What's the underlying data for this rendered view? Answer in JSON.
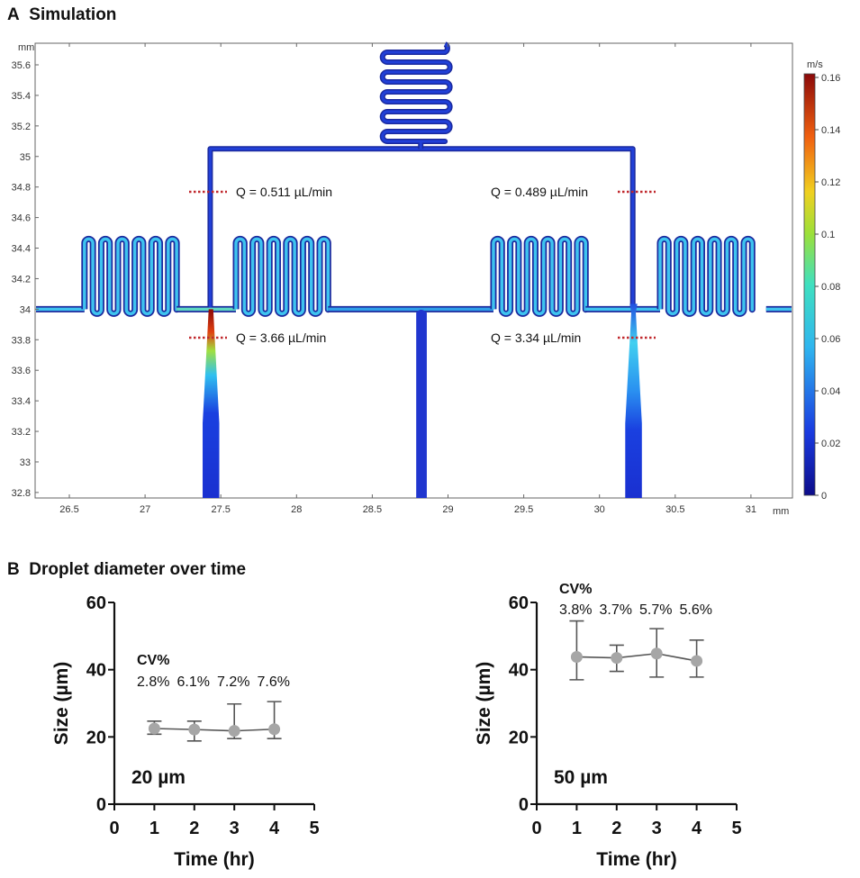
{
  "panel_a": {
    "letter": "A",
    "title": "Simulation",
    "x_unit": "mm",
    "y_unit": "mm",
    "x_ticks": [
      "26.5",
      "27",
      "27.5",
      "28",
      "28.5",
      "29",
      "29.5",
      "30",
      "30.5",
      "31"
    ],
    "y_ticks": [
      "35.6",
      "35.4",
      "35.2",
      "35",
      "34.8",
      "34.6",
      "34.4",
      "34.2",
      "34",
      "33.8",
      "33.6",
      "33.4",
      "33.2",
      "33",
      "32.8"
    ],
    "colorbar": {
      "unit": "m/s",
      "ticks": [
        "0.16",
        "0.14",
        "0.12",
        "0.1",
        "0.08",
        "0.06",
        "0.04",
        "0.02",
        "0"
      ],
      "range": [
        0,
        0.16
      ]
    },
    "flow_labels": {
      "upper_left": "Q = 0.511 µL/min",
      "upper_right": "Q = 0.489 µL/min",
      "lower_left": "Q = 3.66 µL/min",
      "lower_right": "Q = 3.34 µL/min"
    },
    "colors": {
      "low": "#1a1fa8",
      "mid": "#39c6ef",
      "high": "#a11010",
      "marker": "#c0282d"
    }
  },
  "panel_b": {
    "letter": "B",
    "title": "Droplet diameter over time"
  },
  "chart_data": [
    {
      "type": "scatter",
      "annotation": "20 µm",
      "cv_header": "CV%",
      "cv_labels": [
        "2.8%",
        "6.1%",
        "7.2%",
        "7.6%"
      ],
      "xlabel": "Time (hr)",
      "ylabel": "Size (µm)",
      "xlim": [
        0,
        5
      ],
      "ylim": [
        0,
        60
      ],
      "x_ticks": [
        "0",
        "1",
        "2",
        "3",
        "4",
        "5"
      ],
      "y_ticks": [
        "0",
        "20",
        "40",
        "60"
      ],
      "x": [
        1,
        2,
        3,
        4
      ],
      "y": [
        22.5,
        22.2,
        21.8,
        22.3
      ],
      "err_upper": [
        24.7,
        24.7,
        29.8,
        30.5
      ],
      "err_lower": [
        20.8,
        18.8,
        19.5,
        19.5
      ],
      "marker_color": "#a6a6a6",
      "line_color": "#555555"
    },
    {
      "type": "scatter",
      "annotation": "50 µm",
      "cv_header": "CV%",
      "cv_labels": [
        "3.8%",
        "3.7%",
        "5.7%",
        "5.6%"
      ],
      "xlabel": "Time (hr)",
      "ylabel": "Size (µm)",
      "xlim": [
        0,
        5
      ],
      "ylim": [
        0,
        60
      ],
      "x_ticks": [
        "0",
        "1",
        "2",
        "3",
        "4",
        "5"
      ],
      "y_ticks": [
        "0",
        "20",
        "40",
        "60"
      ],
      "x": [
        1,
        2,
        3,
        4
      ],
      "y": [
        43.8,
        43.5,
        44.8,
        42.6
      ],
      "err_upper": [
        54.5,
        47.3,
        52.2,
        48.8
      ],
      "err_lower": [
        37.0,
        39.5,
        37.8,
        37.8
      ],
      "marker_color": "#a6a6a6",
      "line_color": "#555555"
    }
  ]
}
